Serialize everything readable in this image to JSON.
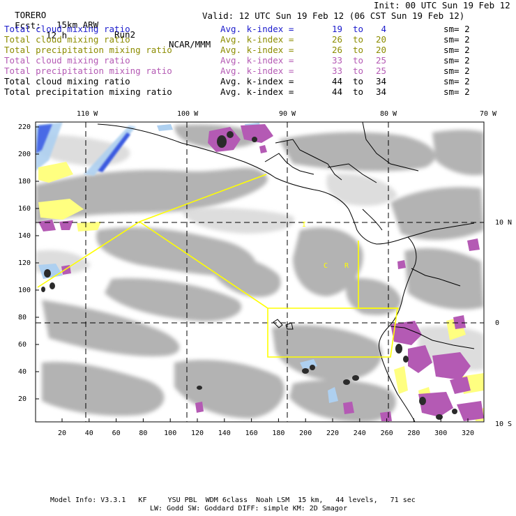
{
  "header": {
    "model": "TORERO",
    "resolution": "15km ARW",
    "run": "Run2",
    "org": "NCAR/MMM",
    "init": "Init: 00 UTC Sun 19 Feb 12",
    "fcst_label": "Fcst:",
    "fcst_value": "12 h",
    "valid": "Valid: 12 UTC Sun 19 Feb 12 (06 CST Sun 19 Feb 12)"
  },
  "legend": [
    {
      "name": "Total cloud mixing ratio",
      "avg": "Avg. k-index =",
      "from": "19",
      "to": "to",
      "end": "4",
      "sm": "sm= 2",
      "color": "#1a1acc"
    },
    {
      "name": "Total cloud mixing ratio",
      "avg": "Avg. k-index =",
      "from": "26",
      "to": "to",
      "end": "20",
      "sm": "sm= 2",
      "color": "#8c8c00"
    },
    {
      "name": "Total precipitation mixing ratio",
      "avg": "Avg. k-index =",
      "from": "26",
      "to": "to",
      "end": "20",
      "sm": "sm= 2",
      "color": "#8c8c00"
    },
    {
      "name": "Total cloud mixing ratio",
      "avg": "Avg. k-index =",
      "from": "33",
      "to": "to",
      "end": "25",
      "sm": "sm= 2",
      "color": "#b45ab4"
    },
    {
      "name": "Total precipitation mixing ratio",
      "avg": "Avg. k-index =",
      "from": "33",
      "to": "to",
      "end": "25",
      "sm": "sm= 2",
      "color": "#b45ab4"
    },
    {
      "name": "Total cloud mixing ratio",
      "avg": "Avg. k-index =",
      "from": "44",
      "to": "to",
      "end": "34",
      "sm": "sm= 2",
      "color": "#000000"
    },
    {
      "name": "Total precipitation mixing ratio",
      "avg": "Avg. k-index =",
      "from": "44",
      "to": "to",
      "end": "34",
      "sm": "sm= 2",
      "color": "#000000"
    }
  ],
  "lon_labels": [
    "110 W",
    "100 W",
    "90 W",
    "80 W",
    "70 W"
  ],
  "lat_labels": [
    "10 N",
    "0",
    "10 S"
  ],
  "y_ticks": [
    "220",
    "200",
    "180",
    "160",
    "140",
    "120",
    "100",
    "80",
    "60",
    "40",
    "20"
  ],
  "x_ticks": [
    "20",
    "40",
    "60",
    "80",
    "100",
    "120",
    "140",
    "160",
    "180",
    "200",
    "220",
    "240",
    "260",
    "280",
    "300",
    "320"
  ],
  "map_labels": [
    "I",
    "C",
    "R"
  ],
  "footer": {
    "line1": "Model Info: V3.3.1   KF     YSU PBL  WDM 6class  Noah LSM  15 km,   44 levels,   71 sec",
    "line2": "LW: Godd SW: Goddard DIFF: simple KM: 2D Smagor"
  },
  "colors": {
    "cloud_gray": "#9a9a9a",
    "cloud_light_gray": "#c6c6c6",
    "blue_band": "#4a6ae6",
    "light_blue": "#aed0f0",
    "yellow": "#ffff80",
    "magenta": "#b45ab4",
    "domain_box": "#ffff00"
  }
}
